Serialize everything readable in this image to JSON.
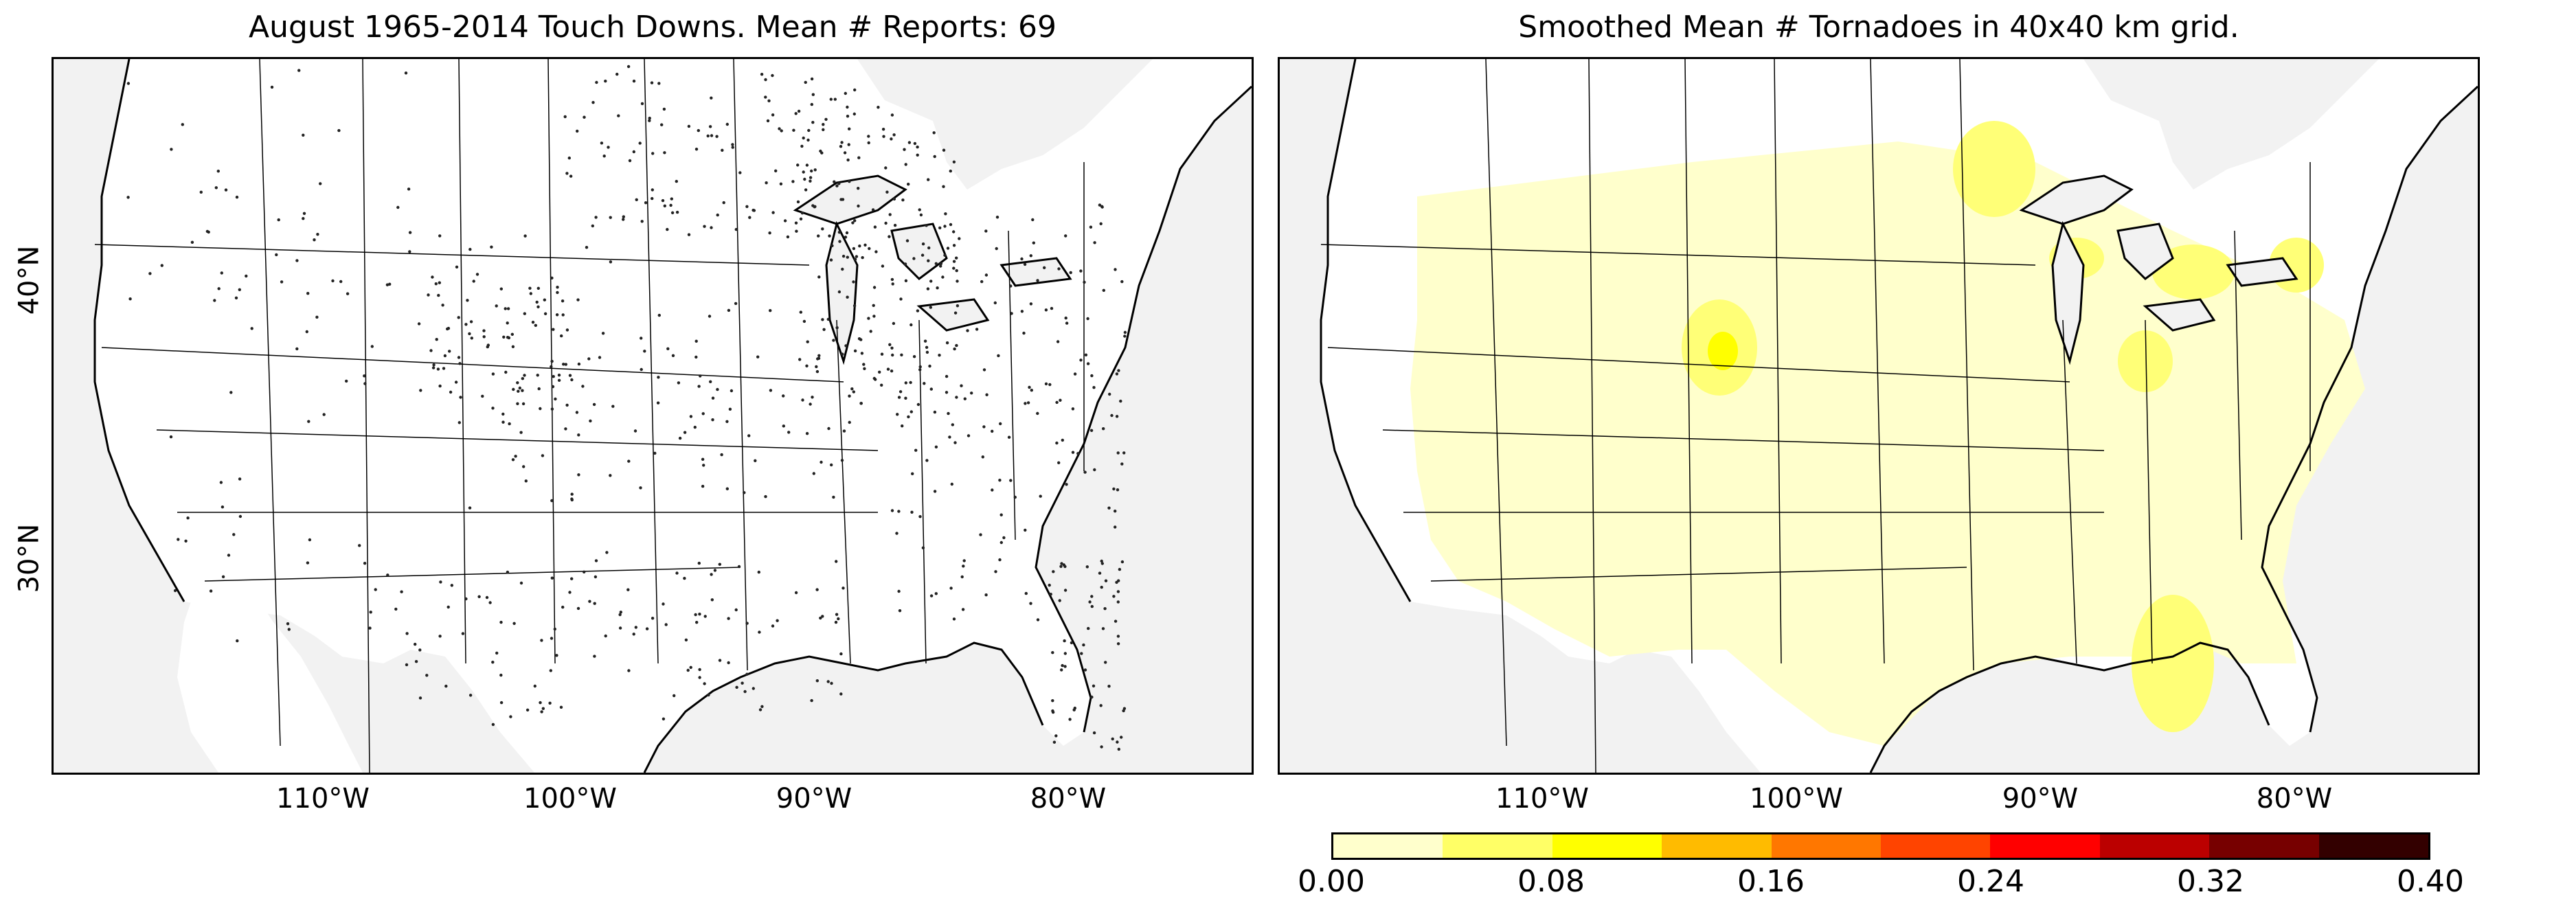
{
  "panels": {
    "left": {
      "title": "August 1965-2014 Touch Downs. Mean # Reports: 69",
      "mean_reports": 69
    },
    "right": {
      "title": "Smoothed Mean # Tornadoes in 40x40 km grid."
    }
  },
  "axes": {
    "lat_labels": [
      "40°N",
      "30°N"
    ],
    "lon_labels": [
      "110°W",
      "100°W",
      "90°W",
      "80°W"
    ]
  },
  "colorbar": {
    "tick_labels": [
      "0.00",
      "0.08",
      "0.16",
      "0.24",
      "0.32",
      "0.40"
    ],
    "colors": [
      "#ffffcc",
      "#ffff66",
      "#ffff00",
      "#ffbb00",
      "#ff7700",
      "#ff4400",
      "#ff0000",
      "#bb0000",
      "#770000",
      "#330000"
    ],
    "range": [
      0.0,
      0.4
    ]
  },
  "map": {
    "land_color": "#ffffff",
    "ocean_color": "#f2f2f2",
    "dot_color": "#222222",
    "low_density_color": "#ffffcc",
    "mid_density_color": "#ffff77",
    "high_density_color": "#ffff00",
    "region": "Contiguous United States"
  }
}
